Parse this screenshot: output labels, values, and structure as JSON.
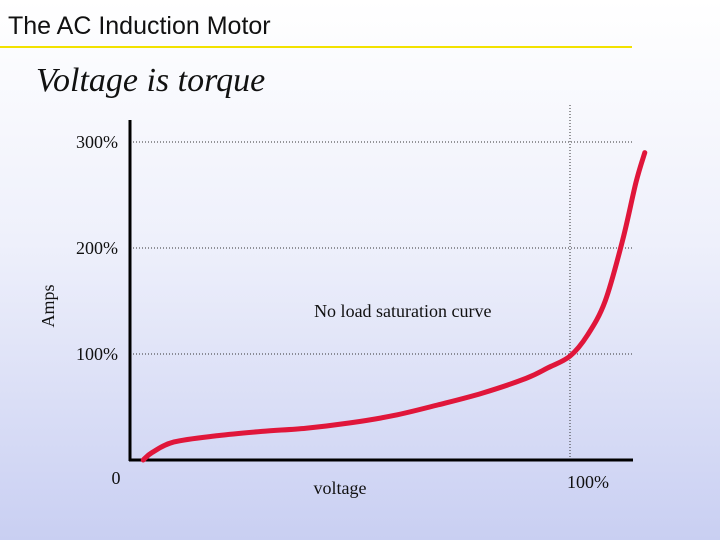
{
  "slide": {
    "title": "The AC Induction Motor",
    "subtitle": "Voltage is torque"
  },
  "colors": {
    "curve": "#e0163a",
    "title_rule": "#f2e200",
    "axis": "#000000",
    "grid": "#333333"
  },
  "chart_data": {
    "type": "line",
    "title": "",
    "xlabel": "voltage",
    "ylabel": "Amps",
    "x_tick_labels": [
      "0",
      "100%"
    ],
    "x_ticks": [
      0,
      100
    ],
    "y_tick_labels": [
      "100%",
      "200%",
      "300%"
    ],
    "y_ticks": [
      100,
      200,
      300
    ],
    "xlim": [
      0,
      118
    ],
    "ylim": [
      0,
      300
    ],
    "grid": "dotted horizontal lines at y ticks, dotted vertical line at x = 100%",
    "annotations": [
      {
        "text": "No load saturation curve",
        "x": 62,
        "y": 135
      }
    ],
    "series": [
      {
        "name": "",
        "x": [
          3,
          5,
          10,
          20,
          30,
          40,
          50,
          60,
          70,
          80,
          90,
          95,
          100,
          104,
          108,
          112,
          115,
          117
        ],
        "y": [
          0,
          7,
          17,
          23,
          27,
          30,
          35,
          42,
          52,
          63,
          77,
          87,
          98,
          118,
          150,
          208,
          262,
          290
        ]
      }
    ]
  }
}
